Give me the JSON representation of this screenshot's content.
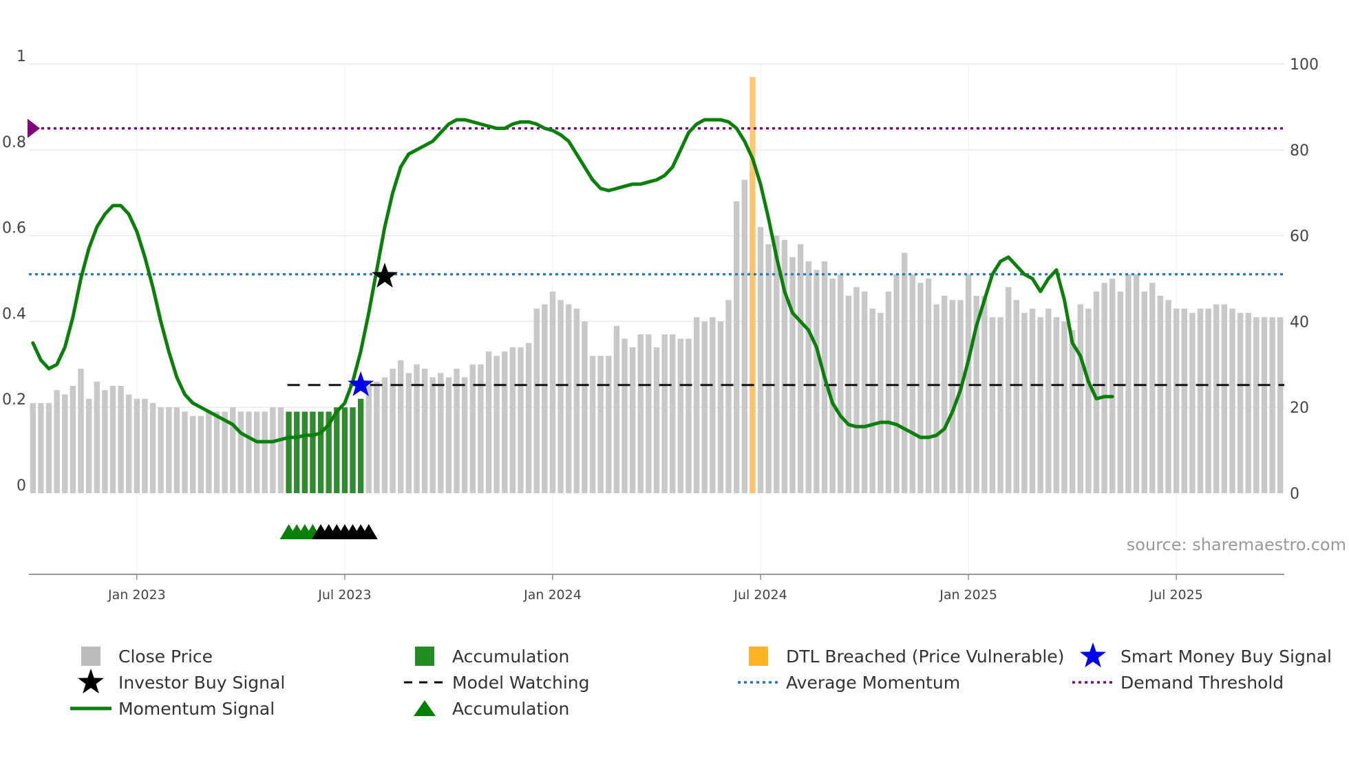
{
  "chart_data": {
    "type": "bar",
    "source": "source: sharemaestro.com",
    "left_axis": {
      "ticks": [
        "0",
        "0.2",
        "0.4",
        "0.6",
        "0.8",
        "1"
      ],
      "values": [
        0,
        0.2,
        0.4,
        0.6,
        0.8,
        1
      ],
      "ylim": [
        0,
        1
      ]
    },
    "right_axis": {
      "ticks": [
        "0",
        "20",
        "40",
        "60",
        "80",
        "100"
      ],
      "values": [
        0,
        20,
        40,
        60,
        80,
        100
      ],
      "ylim": [
        0,
        100
      ]
    },
    "x_ticks": [
      {
        "label": "Jan 2023",
        "week": 13
      },
      {
        "label": "Jul 2023",
        "week": 39
      },
      {
        "label": "Jan 2024",
        "week": 65
      },
      {
        "label": "Jul 2024",
        "week": 91
      },
      {
        "label": "Jan 2025",
        "week": 117
      },
      {
        "label": "Jul 2025",
        "week": 143
      }
    ],
    "close_price": [
      21,
      21,
      21,
      24,
      23,
      25,
      29,
      22,
      26,
      24,
      25,
      25,
      23,
      22,
      22,
      21,
      20,
      20,
      20,
      19,
      18,
      18,
      19,
      19,
      19,
      20,
      19,
      19,
      19,
      19,
      20,
      20,
      19,
      19,
      19,
      19,
      19,
      19,
      20,
      20,
      20,
      22,
      25,
      26,
      27,
      29,
      31,
      28,
      30,
      29,
      27,
      28,
      27,
      29,
      27,
      30,
      30,
      33,
      32,
      33,
      34,
      34,
      35,
      43,
      44,
      47,
      45,
      44,
      43,
      40,
      32,
      32,
      32,
      39,
      36,
      34,
      37,
      37,
      34,
      37,
      37,
      36,
      36,
      41,
      40,
      41,
      40,
      45,
      68,
      73,
      75,
      62,
      58,
      60,
      59,
      55,
      58,
      54,
      52,
      54,
      50,
      51,
      46,
      48,
      47,
      43,
      42,
      47,
      51,
      56,
      51,
      49,
      50,
      44,
      46,
      45,
      45,
      51,
      46,
      46,
      41,
      41,
      48,
      45,
      42,
      43,
      41,
      43,
      41,
      40,
      38,
      44,
      43,
      47,
      49,
      50,
      47,
      51,
      51,
      47,
      49,
      46,
      45,
      43,
      43,
      42,
      43,
      43,
      44,
      44,
      43,
      42,
      42,
      41,
      41,
      41,
      41
    ],
    "accumulation_bar_weeks": [
      32,
      33,
      34,
      35,
      36,
      37,
      38,
      39,
      40,
      41
    ],
    "dtl_breached_week": 90,
    "dtl_breached_value": 97,
    "momentum_signal": [
      0.35,
      0.31,
      0.29,
      0.3,
      0.34,
      0.41,
      0.5,
      0.57,
      0.62,
      0.65,
      0.67,
      0.67,
      0.65,
      0.61,
      0.55,
      0.48,
      0.4,
      0.33,
      0.27,
      0.23,
      0.21,
      0.2,
      0.19,
      0.18,
      0.17,
      0.16,
      0.14,
      0.13,
      0.12,
      0.12,
      0.12,
      0.125,
      0.13,
      0.13,
      0.135,
      0.135,
      0.14,
      0.16,
      0.19,
      0.21,
      0.26,
      0.33,
      0.42,
      0.52,
      0.62,
      0.7,
      0.76,
      0.79,
      0.8,
      0.81,
      0.82,
      0.84,
      0.86,
      0.87,
      0.87,
      0.865,
      0.86,
      0.855,
      0.85,
      0.85,
      0.86,
      0.865,
      0.865,
      0.86,
      0.85,
      0.845,
      0.835,
      0.82,
      0.79,
      0.76,
      0.73,
      0.71,
      0.705,
      0.71,
      0.715,
      0.72,
      0.72,
      0.725,
      0.73,
      0.74,
      0.76,
      0.8,
      0.84,
      0.86,
      0.87,
      0.87,
      0.87,
      0.865,
      0.85,
      0.82,
      0.78,
      0.72,
      0.64,
      0.55,
      0.47,
      0.42,
      0.4,
      0.38,
      0.34,
      0.27,
      0.21,
      0.18,
      0.16,
      0.155,
      0.155,
      0.16,
      0.165,
      0.165,
      0.16,
      0.15,
      0.14,
      0.13,
      0.13,
      0.135,
      0.15,
      0.19,
      0.24,
      0.31,
      0.39,
      0.45,
      0.51,
      0.54,
      0.55,
      0.53,
      0.51,
      0.5,
      0.47,
      0.5,
      0.52,
      0.45,
      0.35,
      0.32,
      0.26,
      0.22,
      0.225,
      0.225
    ],
    "average_momentum": 0.51,
    "demand_threshold": 0.85,
    "model_watching": {
      "value": 0.252,
      "start_week": 32
    },
    "smart_money_buy_signal": {
      "week": 41,
      "value": 0.252
    },
    "investor_buy_signal": {
      "week": 44,
      "value": 0.505
    },
    "accumulation_markers": {
      "green_weeks": [
        32,
        33,
        34,
        35
      ],
      "black_weeks": [
        36,
        37,
        38,
        39,
        40,
        41,
        42
      ]
    },
    "legend": [
      {
        "label": "Close Price",
        "kind": "square",
        "color": "#bbbbbb"
      },
      {
        "label": "Accumulation",
        "kind": "square",
        "color": "#228b22"
      },
      {
        "label": "DTL Breached (Price Vulnerable)",
        "kind": "square",
        "color": "#ffb428"
      },
      {
        "label": "Smart Money Buy Signal",
        "kind": "star",
        "color": "#0000ee"
      },
      {
        "label": "Investor Buy Signal",
        "kind": "star",
        "color": "#000000"
      },
      {
        "label": "Model Watching",
        "kind": "dash",
        "color": "#000000"
      },
      {
        "label": "Average Momentum",
        "kind": "dot",
        "color": "#1f77b4"
      },
      {
        "label": "Demand Threshold",
        "kind": "dot",
        "color": "#800080"
      },
      {
        "label": "Momentum Signal",
        "kind": "line",
        "color": "#008000"
      },
      {
        "label": "Accumulation",
        "kind": "triangle",
        "color": "#008000"
      }
    ],
    "colors": {
      "close_price": "#c8c8c8",
      "accumulation": "#2e8b2e",
      "dtl": "#ffc266",
      "momentum": "#0a800a",
      "average_momentum": "#2a74b0",
      "demand_threshold": "#800080",
      "model_watching": "#111111",
      "smart_money": "#0000ee",
      "investor": "#000000",
      "grid": "#e6e6e6",
      "axis": "#777777"
    }
  }
}
